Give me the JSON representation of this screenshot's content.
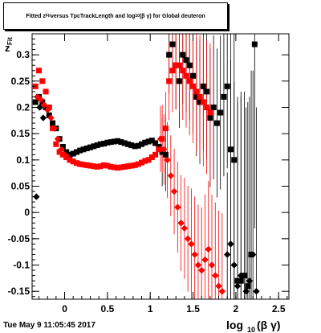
{
  "chart_data": {
    "type": "scatter",
    "title": "Fitted z_Fit versus TpcTrackLength and log10(βγ) for Global deuteron",
    "title_parts": {
      "a": "Fitted  z",
      "sub1": "Fit",
      "b": " versus TpcTrackLength and log",
      "sub2": "10",
      "c": "(β γ) for Global deuteron"
    },
    "xlabel": "log",
    "xlabel_sub": "10",
    "xlabel_tail": " (β γ)",
    "ylabel": "z",
    "ylabel_sub": "Fit",
    "xlim": [
      -0.38,
      2.62
    ],
    "ylim": [
      -0.165,
      0.34
    ],
    "x_ticks": [
      "0",
      "0.5",
      "1",
      "1.5",
      "2",
      "2.5"
    ],
    "y_ticks": [
      "-0.15",
      "-0.1",
      "-0.05",
      "0",
      "0.05",
      "0.1",
      "0.15",
      "0.2",
      "0.25",
      "0.3"
    ],
    "grid": false,
    "footer": "Tue May  9 11:05:45 2017",
    "series": [
      {
        "color": "#000000",
        "marker": "square",
        "x": [
          -0.34,
          -0.3,
          -0.26,
          -0.22,
          -0.18,
          -0.14,
          -0.1,
          -0.06,
          -0.02,
          0.02,
          0.06,
          0.1,
          0.14,
          0.18,
          0.22,
          0.26,
          0.3,
          0.34,
          0.38,
          0.42,
          0.46,
          0.5,
          0.54,
          0.58,
          0.62,
          0.66,
          0.7,
          0.74,
          0.78,
          0.82,
          0.86,
          0.9,
          0.94,
          0.98,
          1.02,
          1.06,
          1.1,
          1.14,
          1.18,
          1.22,
          1.26,
          1.3,
          1.34,
          1.38,
          1.42,
          1.46,
          1.5,
          1.54,
          1.58,
          1.62,
          1.66,
          1.7,
          1.74,
          1.78,
          1.82,
          1.86,
          1.9,
          1.94,
          1.98,
          2.02,
          2.06,
          2.1,
          2.14,
          2.18,
          2.22
        ],
        "y": [
          0.21,
          0.22,
          0.21,
          0.2,
          0.185,
          0.17,
          0.16,
          0.14,
          0.125,
          0.115,
          0.11,
          0.112,
          0.115,
          0.118,
          0.12,
          0.122,
          0.124,
          0.126,
          0.128,
          0.13,
          0.131,
          0.133,
          0.134,
          0.135,
          0.136,
          0.134,
          0.132,
          0.13,
          0.128,
          0.126,
          0.127,
          0.13,
          0.133,
          0.135,
          0.137,
          0.132,
          0.125,
          0.115,
          0.11,
          0.3,
          0.32,
          0.28,
          0.25,
          0.3,
          0.29,
          0.28,
          0.26,
          0.22,
          0.21,
          0.24,
          0.23,
          0.18,
          0.2,
          0.17,
          0.19,
          0.22,
          0.24,
          0.12,
          0.1,
          -0.13,
          -0.13,
          -0.12,
          -0.14,
          -0.08,
          0.32
        ]
      },
      {
        "color": "#ff0000",
        "marker": "square",
        "x": [
          -0.34,
          -0.3,
          -0.26,
          -0.22,
          -0.18,
          -0.14,
          -0.1,
          -0.06,
          -0.02,
          0.02,
          0.06,
          0.1,
          0.14,
          0.18,
          0.22,
          0.26,
          0.3,
          0.34,
          0.38,
          0.42,
          0.46,
          0.5,
          0.54,
          0.58,
          0.62,
          0.66,
          0.7,
          0.74,
          0.78,
          0.82,
          0.86,
          0.9,
          0.94,
          0.98,
          1.02,
          1.06,
          1.1,
          1.14,
          1.18,
          1.22,
          1.26,
          1.3,
          1.34,
          1.38,
          1.42,
          1.46,
          1.5,
          1.54,
          1.58,
          1.62,
          1.66,
          1.7
        ],
        "y": [
          0.24,
          0.27,
          0.25,
          0.23,
          0.2,
          0.16,
          0.13,
          0.115,
          0.11,
          0.105,
          0.1,
          0.097,
          0.094,
          0.092,
          0.091,
          0.09,
          0.089,
          0.088,
          0.087,
          0.088,
          0.09,
          0.089,
          0.087,
          0.086,
          0.085,
          0.086,
          0.087,
          0.088,
          0.089,
          0.09,
          0.092,
          0.095,
          0.098,
          0.1,
          0.105,
          0.11,
          0.12,
          0.14,
          0.16,
          0.25,
          0.27,
          0.28,
          0.28,
          0.27,
          0.26,
          0.25,
          0.24,
          0.23,
          0.22,
          0.21,
          0.2,
          0.19
        ]
      },
      {
        "color": "#ff0000",
        "marker": "diamond",
        "x": [
          -0.32,
          -0.28,
          -0.24,
          -0.2,
          -0.16,
          -0.12,
          -0.08,
          -0.04,
          0.0,
          1.12,
          1.16,
          1.2,
          1.24,
          1.28,
          1.32,
          1.36,
          1.4,
          1.44,
          1.48,
          1.52,
          1.56,
          1.6,
          1.64,
          1.68,
          1.72,
          1.76,
          1.8,
          1.84
        ],
        "y": [
          0.22,
          0.215,
          0.205,
          0.195,
          0.18,
          0.16,
          0.14,
          0.12,
          0.11,
          0.14,
          0.12,
          0.1,
          0.07,
          0.04,
          0.01,
          -0.02,
          -0.03,
          -0.05,
          -0.06,
          -0.08,
          -0.1,
          -0.11,
          -0.09,
          -0.07,
          -0.1,
          -0.12,
          -0.14,
          -0.15
        ]
      },
      {
        "color": "#000000",
        "marker": "diamond",
        "x": [
          -0.33,
          -0.29,
          -0.25,
          1.9,
          1.94,
          1.98,
          2.02,
          2.06,
          2.12,
          2.16,
          2.2,
          2.24
        ],
        "y": [
          0.03,
          0.2,
          0.18,
          -0.08,
          -0.06,
          -0.1,
          -0.14,
          -0.12,
          -0.15,
          -0.13,
          -0.08,
          -0.15
        ]
      }
    ]
  }
}
